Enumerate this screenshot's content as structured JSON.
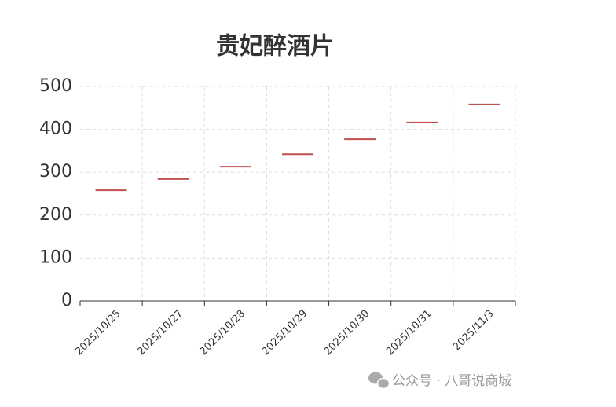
{
  "chart_data": {
    "type": "dash",
    "title": "贵妃醉酒片",
    "categories": [
      "2025/10/25",
      "2025/10/27",
      "2025/10/28",
      "2025/10/29",
      "2025/10/30",
      "2025/10/31",
      "2025/11/3"
    ],
    "values": [
      258,
      284,
      313,
      342,
      377,
      416,
      458
    ],
    "color": "#c0504d",
    "ylim": [
      0,
      500
    ],
    "yticks": [
      0,
      100,
      200,
      300,
      400,
      500
    ],
    "grid": true,
    "watermark": "公众号 · 八哥说商城"
  }
}
